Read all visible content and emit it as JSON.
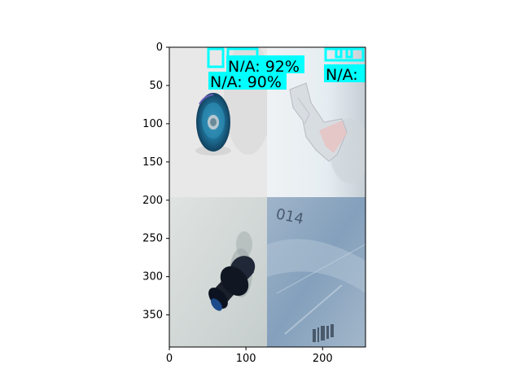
{
  "image_axes": {
    "xlim": [
      0,
      256
    ],
    "ylim": [
      392,
      0
    ],
    "x_ticks": [
      "0",
      "100",
      "200"
    ],
    "y_ticks": [
      "0",
      "50",
      "100",
      "150",
      "200",
      "250",
      "300",
      "350"
    ]
  },
  "tiles": [
    {
      "name": "tile-can",
      "x0": 0,
      "y0": 0,
      "x1": 128,
      "y1": 196,
      "bg": "#e6e6e6",
      "subject": "aluminum-can"
    },
    {
      "name": "tile-wrapper",
      "x0": 128,
      "y0": 0,
      "x1": 256,
      "y1": 196,
      "bg": "#dfe9f0",
      "subject": "crumpled-wrapper"
    },
    {
      "name": "tile-bottle",
      "x0": 0,
      "y0": 196,
      "x1": 128,
      "y1": 392,
      "bg": "#cfd8d8",
      "subject": "dark-bottle"
    },
    {
      "name": "tile-plastic",
      "x0": 128,
      "y0": 196,
      "x1": 256,
      "y1": 392,
      "bg": "#8fa8c2",
      "subject": "plastic-bag"
    }
  ],
  "detections": [
    {
      "label": "N/A: 92%"
    },
    {
      "label": "N/A: 90%"
    },
    {
      "label": "N/A:"
    }
  ],
  "colors": {
    "detection": "#00ffff",
    "label_text": "#000000"
  }
}
